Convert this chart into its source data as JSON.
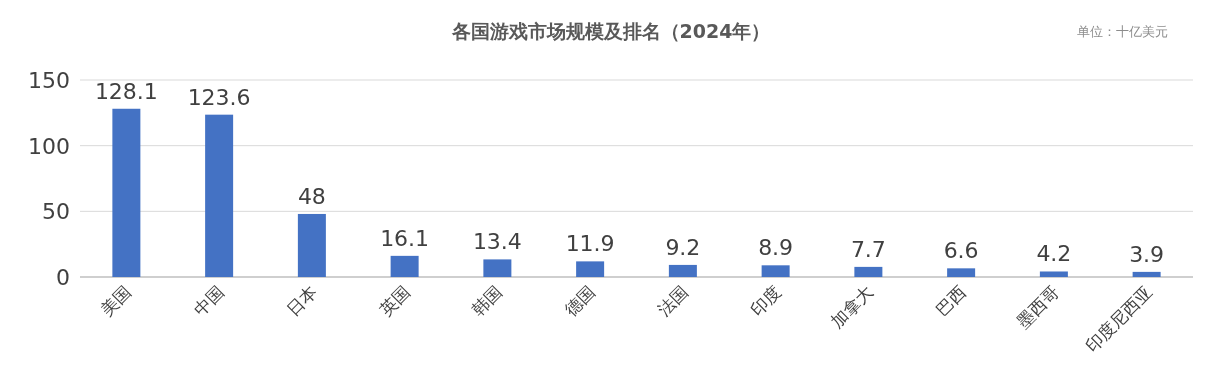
{
  "chart_data": {
    "type": "bar",
    "title": "各国游戏市场规模及排名（2024年）",
    "annotations": [
      "单位：十亿美元"
    ],
    "categories": [
      "美国",
      "中国",
      "日本",
      "英国",
      "韩国",
      "德国",
      "法国",
      "印度",
      "加拿大",
      "巴西",
      "墨西哥",
      "印度尼西亚"
    ],
    "values": [
      128.1,
      123.6,
      48,
      16.1,
      13.4,
      11.9,
      9.2,
      8.9,
      7.7,
      6.6,
      4.2,
      3.9
    ],
    "color": "#4472c4",
    "ylim": [
      0,
      150
    ],
    "yticks": [
      0,
      50,
      100,
      150
    ],
    "grid": "y",
    "data_labels": true
  }
}
